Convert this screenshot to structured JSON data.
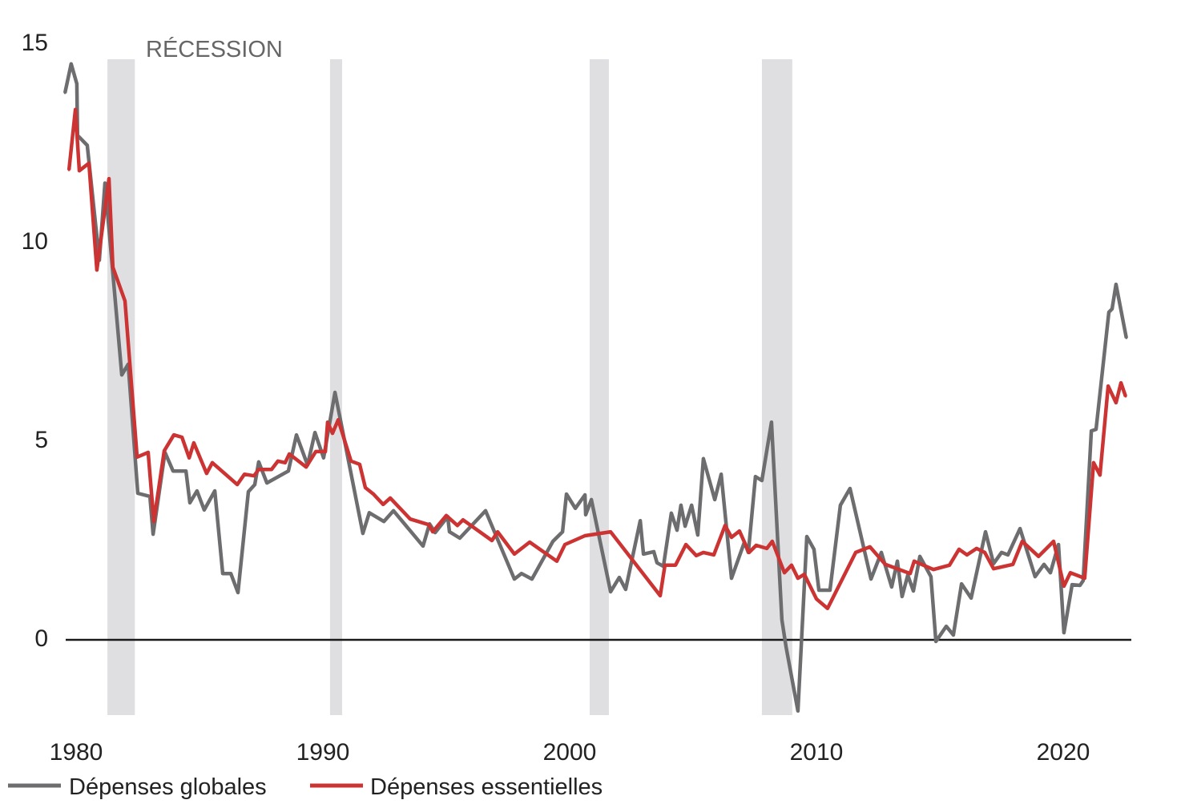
{
  "chart_data": {
    "type": "line",
    "title": "",
    "xlabel": "",
    "ylabel": "",
    "xlim": [
      1979.5,
      2022.8
    ],
    "ylim": [
      -1.9,
      15
    ],
    "grid": false,
    "x_ticks": [
      "1980",
      "1990",
      "2000",
      "2010",
      "2020"
    ],
    "y_ticks": [
      "0",
      "5",
      "10",
      "15"
    ],
    "legend_position": "bottom-left",
    "annotation": "RÉCESSION",
    "recessions": [
      [
        1981.27,
        1982.38
      ],
      [
        1990.29,
        1990.78
      ],
      [
        2000.81,
        2001.59
      ],
      [
        2007.79,
        2009.02
      ]
    ],
    "colors": {
      "recession": "#dfdfe1",
      "zero_line": "#1a1a1a"
    },
    "series": [
      {
        "name": "Dépenses globales",
        "color": "#6d6d6f",
        "x": [
          1979.55,
          1979.8,
          1980.03,
          1980.06,
          1980.45,
          1980.94,
          1981.17,
          1981.85,
          1982.11,
          1982.5,
          1982.99,
          1983.12,
          1983.6,
          1983.93,
          1984.45,
          1984.61,
          1984.9,
          1985.19,
          1985.62,
          1985.94,
          1986.27,
          1986.56,
          1986.98,
          1987.24,
          1987.4,
          1987.73,
          1988.6,
          1988.93,
          1989.38,
          1989.68,
          1990.03,
          1990.49,
          1991.62,
          1991.88,
          1992.47,
          1992.86,
          1994.06,
          1994.32,
          1994.55,
          1995.06,
          1995.13,
          1995.55,
          1996.59,
          1997.76,
          1998.05,
          1998.47,
          1999.32,
          1999.71,
          1999.87,
          2000.23,
          2000.62,
          2000.65,
          2000.88,
          2001.66,
          2002.01,
          2002.27,
          2002.86,
          2002.99,
          2003.41,
          2003.54,
          2003.8,
          2004.12,
          2004.35,
          2004.51,
          2004.68,
          2004.94,
          2005.19,
          2005.42,
          2005.88,
          2006.14,
          2006.56,
          2007.08,
          2007.24,
          2007.53,
          2007.79,
          2008.18,
          2008.6,
          2008.77,
          2009.25,
          2009.61,
          2009.9,
          2010.1,
          2010.55,
          2010.97,
          2011.36,
          2012.21,
          2012.63,
          2013.05,
          2013.28,
          2013.47,
          2013.7,
          2013.93,
          2014.19,
          2014.64,
          2014.84,
          2015.26,
          2015.55,
          2015.88,
          2016.27,
          2016.85,
          2017.18,
          2017.5,
          2017.76,
          2018.25,
          2018.86,
          2019.22,
          2019.48,
          2019.81,
          2020.03,
          2020.36,
          2020.68,
          2020.81,
          2021.14,
          2021.33,
          2021.85,
          2021.98,
          2022.14,
          2022.56
        ],
        "values": [
          13.77,
          14.5,
          14.0,
          12.7,
          12.45,
          9.56,
          11.5,
          6.67,
          6.94,
          3.69,
          3.61,
          2.66,
          4.72,
          4.25,
          4.25,
          3.45,
          3.75,
          3.27,
          3.75,
          1.67,
          1.67,
          1.19,
          3.73,
          3.91,
          4.48,
          3.95,
          4.25,
          5.16,
          4.4,
          5.22,
          4.58,
          6.23,
          2.68,
          3.2,
          2.98,
          3.25,
          2.36,
          2.92,
          2.7,
          3.1,
          2.72,
          2.56,
          3.25,
          1.53,
          1.67,
          1.53,
          2.48,
          2.72,
          3.67,
          3.31,
          3.65,
          3.15,
          3.53,
          1.21,
          1.57,
          1.27,
          3.0,
          2.16,
          2.22,
          1.94,
          1.85,
          3.19,
          2.76,
          3.39,
          2.86,
          3.39,
          2.64,
          4.56,
          3.53,
          4.17,
          1.55,
          2.46,
          2.2,
          4.11,
          4.01,
          5.48,
          0.5,
          -0.18,
          -1.79,
          2.6,
          2.28,
          1.25,
          1.25,
          3.39,
          3.81,
          1.53,
          2.2,
          1.33,
          1.98,
          1.09,
          1.63,
          1.23,
          2.1,
          1.59,
          -0.04,
          0.34,
          0.12,
          1.41,
          1.05,
          2.72,
          1.92,
          2.2,
          2.14,
          2.8,
          1.59,
          1.9,
          1.69,
          2.4,
          0.18,
          1.39,
          1.37,
          1.49,
          5.26,
          5.3,
          8.25,
          8.33,
          8.95,
          7.6
        ]
      },
      {
        "name": "Dépenses essentielles",
        "color": "#cc3333",
        "x": [
          1979.71,
          1979.97,
          1980.13,
          1980.52,
          1980.84,
          1981.33,
          1981.49,
          1981.98,
          1982.47,
          1982.92,
          1983.15,
          1983.57,
          1983.96,
          1984.29,
          1984.58,
          1984.77,
          1985.29,
          1985.52,
          1986.53,
          1986.82,
          1987.21,
          1987.4,
          1987.92,
          1988.18,
          1988.47,
          1988.64,
          1989.32,
          1989.71,
          1990.1,
          1990.19,
          1990.39,
          1990.62,
          1991.14,
          1991.49,
          1991.72,
          1992.05,
          1992.44,
          1992.73,
          1993.54,
          1994.29,
          1994.45,
          1995.0,
          1995.45,
          1995.68,
          1996.85,
          1997.08,
          1997.76,
          1998.38,
          1999.48,
          1999.81,
          2000.62,
          2001.66,
          2003.67,
          2003.86,
          2004.29,
          2004.71,
          2005.13,
          2005.42,
          2005.84,
          2006.3,
          2006.56,
          2006.88,
          2007.27,
          2007.56,
          2007.99,
          2008.21,
          2008.7,
          2008.99,
          2009.25,
          2009.51,
          2010.0,
          2010.45,
          2011.59,
          2012.17,
          2012.79,
          2013.8,
          2013.96,
          2014.74,
          2015.39,
          2015.78,
          2016.1,
          2016.49,
          2016.82,
          2017.18,
          2017.96,
          2018.34,
          2019.0,
          2019.61,
          2020.03,
          2020.29,
          2020.87,
          2021.23,
          2021.49,
          2021.82,
          2022.14,
          2022.34,
          2022.53
        ],
        "values": [
          11.83,
          13.35,
          11.81,
          12.0,
          9.31,
          11.61,
          9.38,
          8.53,
          4.6,
          4.72,
          2.98,
          4.76,
          5.16,
          5.1,
          4.58,
          4.96,
          4.19,
          4.46,
          3.91,
          4.17,
          4.13,
          4.29,
          4.29,
          4.5,
          4.46,
          4.68,
          4.35,
          4.74,
          4.74,
          5.48,
          5.2,
          5.54,
          4.5,
          4.42,
          3.83,
          3.67,
          3.41,
          3.57,
          3.04,
          2.9,
          2.72,
          3.13,
          2.88,
          3.02,
          2.5,
          2.72,
          2.16,
          2.46,
          1.98,
          2.4,
          2.62,
          2.72,
          1.11,
          1.88,
          1.88,
          2.4,
          2.12,
          2.2,
          2.14,
          2.88,
          2.58,
          2.74,
          2.2,
          2.38,
          2.3,
          2.48,
          1.69,
          1.88,
          1.55,
          1.65,
          1.03,
          0.79,
          2.2,
          2.34,
          1.9,
          1.67,
          1.98,
          1.77,
          1.88,
          2.28,
          2.14,
          2.3,
          2.2,
          1.79,
          1.9,
          2.48,
          2.1,
          2.48,
          1.35,
          1.69,
          1.55,
          4.46,
          4.15,
          6.39,
          5.97,
          6.47,
          6.13
        ]
      }
    ]
  }
}
